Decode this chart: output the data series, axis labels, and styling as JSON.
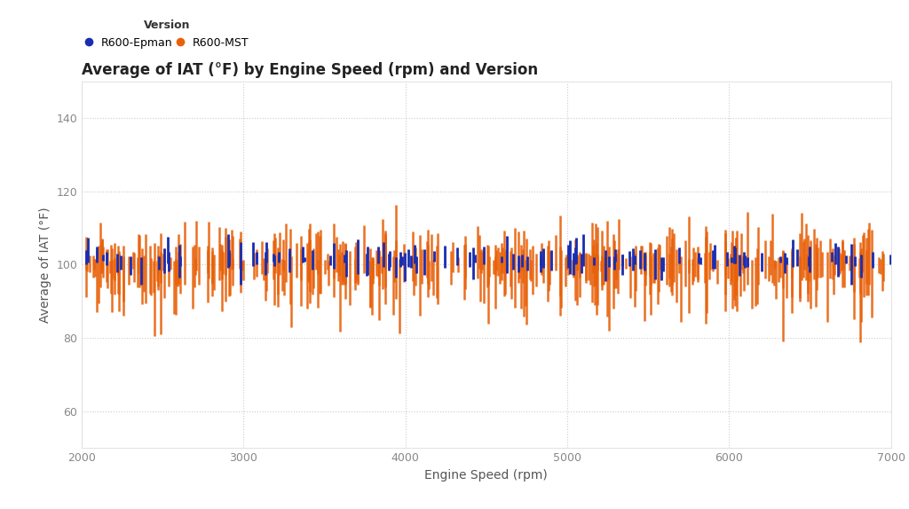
{
  "title": "Average of IAT (°F) by Engine Speed (rpm) and Version",
  "xlabel": "Engine Speed (rpm)",
  "ylabel": "Average of IAT (°F)",
  "legend_title": "Version",
  "series": [
    {
      "label": "R600-Epman",
      "color": "#1a2db0"
    },
    {
      "label": "R600-MST",
      "color": "#E8610A"
    }
  ],
  "xlim": [
    2000,
    7000
  ],
  "ylim": [
    50,
    150
  ],
  "yticks": [
    60,
    80,
    100,
    120,
    140
  ],
  "xticks": [
    2000,
    3000,
    4000,
    5000,
    6000,
    7000
  ],
  "background_color": "#ffffff",
  "grid_color": "#cccccc",
  "title_fontsize": 12,
  "axis_label_fontsize": 10,
  "tick_fontsize": 9,
  "legend_fontsize": 9,
  "seed": 42,
  "mst_mean": 100.0,
  "mst_upper_std": 5.0,
  "mst_lower_std": 7.0,
  "epman_mean": 101.5,
  "epman_upper_std": 2.5,
  "epman_lower_std": 2.5,
  "n_mst": 400,
  "n_epman": 120
}
